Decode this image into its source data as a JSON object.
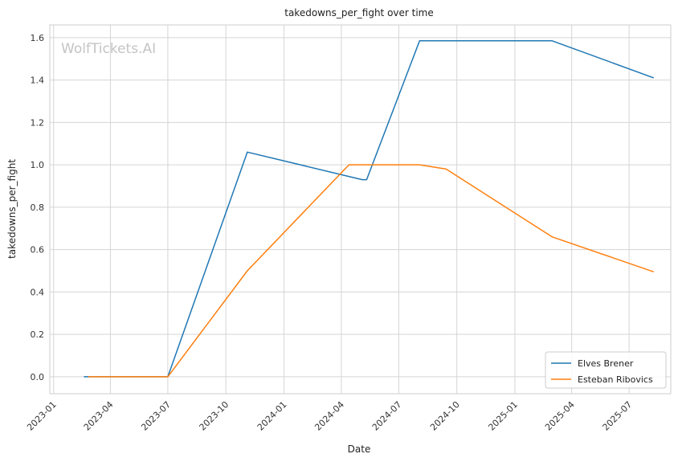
{
  "chart_data": {
    "type": "line",
    "title": "takedowns_per_fight over time",
    "xlabel": "Date",
    "ylabel": "takedowns_per_fight",
    "watermark": "WolfTickets.AI",
    "x_ticks": [
      "2023-01",
      "2023-04",
      "2023-07",
      "2023-10",
      "2024-01",
      "2024-04",
      "2024-07",
      "2024-10",
      "2025-01",
      "2025-04",
      "2025-07"
    ],
    "y_ticks": [
      "0.0",
      "0.2",
      "0.4",
      "0.6",
      "0.8",
      "1.0",
      "1.2",
      "1.4",
      "1.6"
    ],
    "ylim": [
      -0.08,
      1.66
    ],
    "xlim": [
      "2022-12-26",
      "2025-09-05"
    ],
    "grid": true,
    "legend": "bottom-right",
    "series": [
      {
        "name": "Elves Brener",
        "color": "#1f77b4",
        "x": [
          "2023-02-18",
          "2023-07-01",
          "2023-11-04",
          "2024-05-04",
          "2024-05-11",
          "2024-08-03",
          "2025-03-01",
          "2025-08-09"
        ],
        "y": [
          0.0,
          0.0,
          1.06,
          0.93,
          0.93,
          1.585,
          1.585,
          1.41
        ]
      },
      {
        "name": "Esteban Ribovics",
        "color": "#ff7f0e",
        "x": [
          "2023-02-25",
          "2023-07-01",
          "2023-11-04",
          "2024-04-13",
          "2024-08-03",
          "2024-09-14",
          "2025-03-01",
          "2025-08-09"
        ],
        "y": [
          0.0,
          0.0,
          0.5,
          1.0,
          1.0,
          0.98,
          0.66,
          0.495
        ]
      }
    ]
  }
}
